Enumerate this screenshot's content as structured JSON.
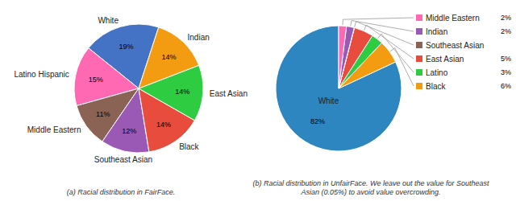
{
  "chart_data": [
    {
      "type": "pie",
      "title": "(a)  Racial distribution in FairFace.",
      "categories": [
        "White",
        "Latino Hispanic",
        "Middle Eastern",
        "Southeast Asian",
        "Black",
        "East Asian",
        "Indian"
      ],
      "values": [
        19,
        15,
        11,
        12,
        14,
        14,
        14
      ],
      "value_labels": [
        "19%",
        "15%",
        "11%",
        "12%",
        "14%",
        "14%",
        "14%"
      ],
      "colors": [
        "#4472C4",
        "#FF69B4",
        "#8B6355",
        "#9B59B6",
        "#E74C3C",
        "#2ECC40",
        "#F39C12"
      ],
      "data_labels": true
    },
    {
      "type": "pie",
      "title": "(b)  Racial distribution in UnfairFace. We leave out the value for Southeast\nAsian (0.05%) to avoid value overcrowding.",
      "categories": [
        "White",
        "Black",
        "Latino",
        "East Asian",
        "Southeast Asian",
        "Indian",
        "Middle Eastern"
      ],
      "values": [
        82,
        6,
        3,
        5,
        0.05,
        2,
        2
      ],
      "value_labels": [
        "82%",
        "6%",
        "3%",
        "5%",
        null,
        "2%",
        "2%"
      ],
      "colors": [
        "#2E86C1",
        "#F39C12",
        "#2ECC40",
        "#E74C3C",
        "#8B6355",
        "#9B59B6",
        "#FF69B4"
      ],
      "data_labels": true
    }
  ]
}
